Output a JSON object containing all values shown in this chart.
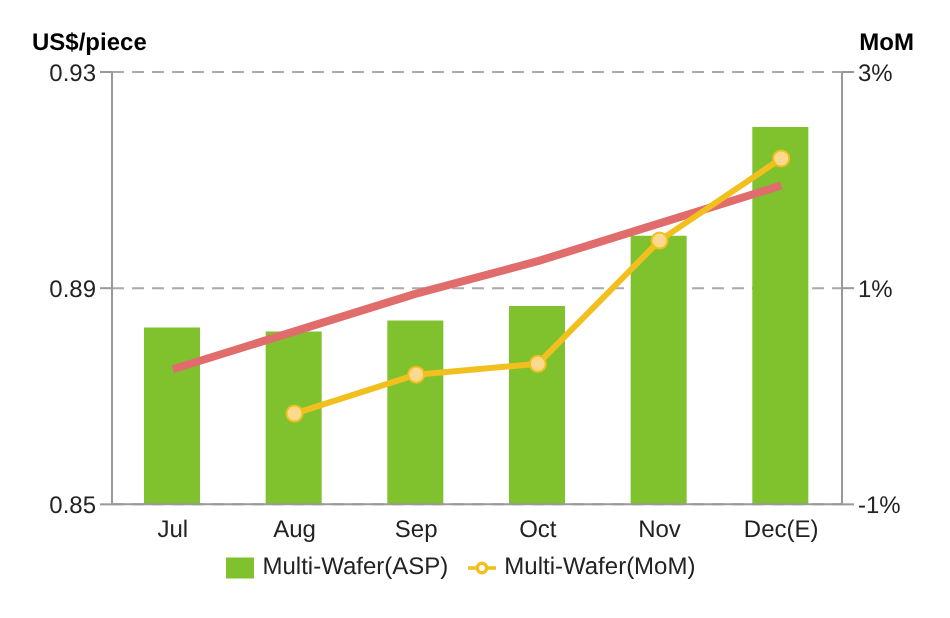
{
  "chart_data": {
    "type": "bar",
    "ylabel": "US$/piece",
    "y2label": "MoM",
    "categories": [
      "Jul",
      "Aug",
      "Sep",
      "Oct",
      "Nov",
      "Dec(E)"
    ],
    "series": [
      {
        "name": "Multi-Wafer(ASP)",
        "color": "#80c12e",
        "values": [
          0.8827,
          0.882,
          0.884,
          0.8867,
          0.8997,
          0.9198
        ]
      },
      {
        "type": "line",
        "color": "#e06c6c",
        "values": [
          0.875,
          0.882,
          0.889,
          0.895,
          0.902,
          0.909
        ]
      },
      {
        "name": "Multi-Wafer(MoM)",
        "type": "line",
        "axis": "y2",
        "color": "#f2c01e",
        "marker": "circle",
        "values": [
          null,
          -0.16,
          0.2,
          0.3,
          1.44,
          2.2
        ]
      }
    ],
    "ylim": [
      0.85,
      0.93
    ],
    "yticks": [
      0.85,
      0.89,
      0.93
    ],
    "y2lim": [
      -1,
      3
    ],
    "y2ticks": [
      {
        "value": -1,
        "label": "-1%"
      },
      {
        "value": 1,
        "label": "1%"
      },
      {
        "value": 3,
        "label": "3%"
      }
    ],
    "grid": "y",
    "legend": "bottom"
  }
}
